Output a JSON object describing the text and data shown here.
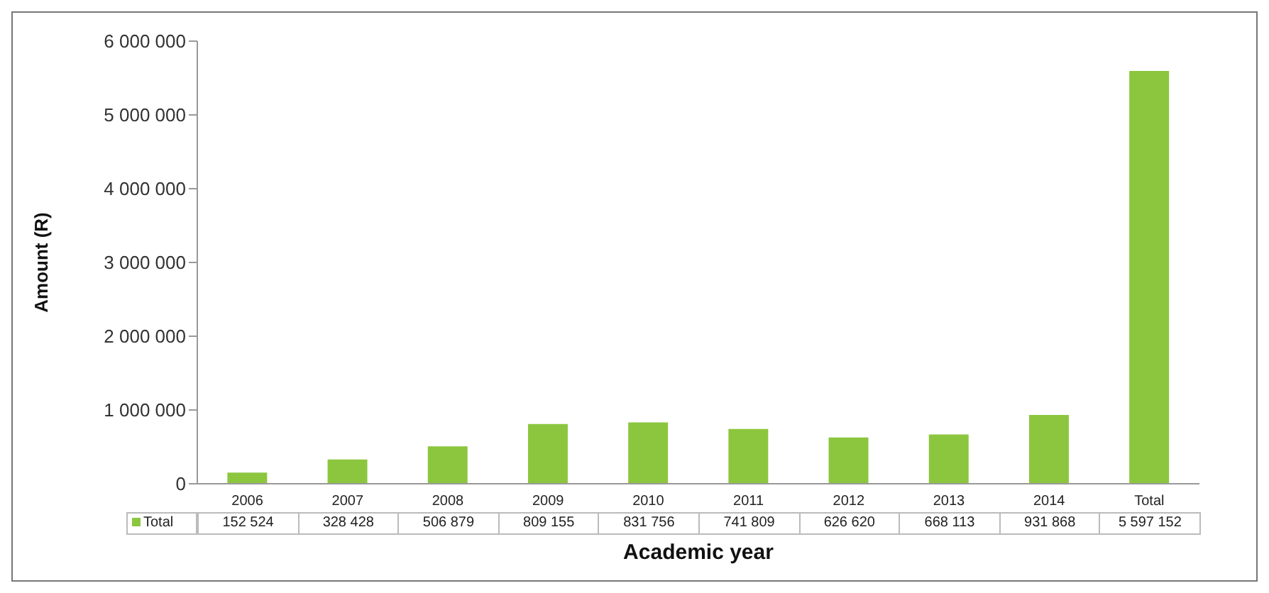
{
  "chart_data": {
    "type": "bar",
    "xlabel": "Academic year",
    "ylabel": "Amount (R)",
    "categories": [
      "2006",
      "2007",
      "2008",
      "2009",
      "2010",
      "2011",
      "2012",
      "2013",
      "2014",
      "Total"
    ],
    "series": [
      {
        "name": "Total",
        "color": "#8cc63f",
        "values": [
          152524,
          328428,
          506879,
          809155,
          831756,
          741809,
          626620,
          668113,
          931868,
          5597152
        ],
        "value_labels": [
          "152 524",
          "328 428",
          "506 879",
          "809 155",
          "831 756",
          "741 809",
          "626 620",
          "668 113",
          "931 868",
          "5 597 152"
        ]
      }
    ],
    "ylim": [
      0,
      6000000
    ],
    "yticks": [
      {
        "value": 0,
        "label": "0"
      },
      {
        "value": 1000000,
        "label": "1 000 000"
      },
      {
        "value": 2000000,
        "label": "2 000 000"
      },
      {
        "value": 3000000,
        "label": "3 000 000"
      },
      {
        "value": 4000000,
        "label": "4 000 000"
      },
      {
        "value": 5000000,
        "label": "5 000 000"
      },
      {
        "value": 6000000,
        "label": "6 000 000"
      }
    ],
    "grid": false,
    "legend": "bottom"
  }
}
